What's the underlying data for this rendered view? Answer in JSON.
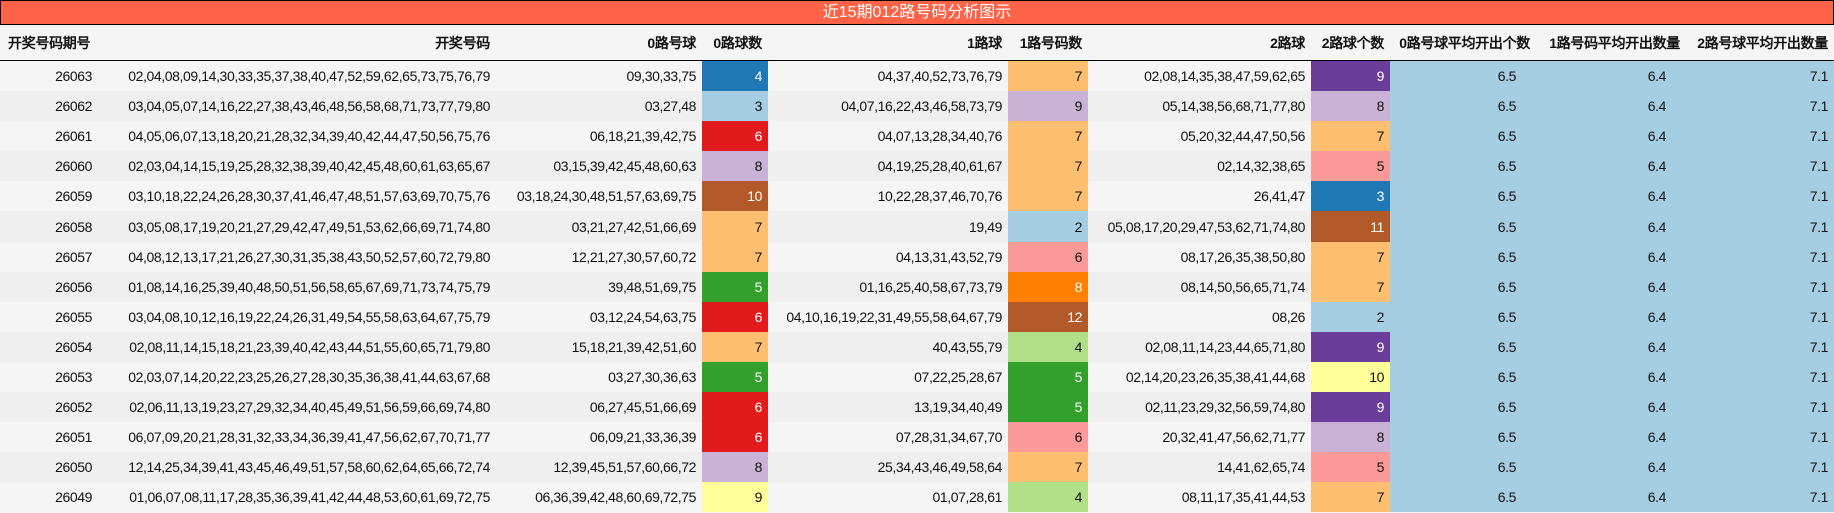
{
  "title": "近15期012路号码分析图示",
  "headers": [
    "开奖号码期号",
    "开奖号码",
    "0路号球",
    "0路球数",
    "1路球",
    "1路号码数",
    "2路球",
    "2路球个数",
    "0路号球平均开出个数",
    "1路号码平均开出数量",
    "2路号球平均开出数量"
  ],
  "avg_color": "#a6cee3",
  "rows": [
    {
      "issue": "26063",
      "numbers": "02,04,08,09,14,30,33,35,37,38,40,47,52,59,62,65,73,75,76,79",
      "r0": "09,30,33,75",
      "c0": "4",
      "c0_color": "#1f78b4",
      "r1": "04,37,40,52,73,76,79",
      "c1": "7",
      "c1_color": "#fdbf6f",
      "r2": "02,08,14,35,38,47,59,62,65",
      "c2": "9",
      "c2_color": "#6a3d9a",
      "a0": "6.5",
      "a1": "6.4",
      "a2": "7.1"
    },
    {
      "issue": "26062",
      "numbers": "03,04,05,07,14,16,22,27,38,43,46,48,56,58,68,71,73,77,79,80",
      "r0": "03,27,48",
      "c0": "3",
      "c0_color": "#a6cee3",
      "r1": "04,07,16,22,43,46,58,73,79",
      "c1": "9",
      "c1_color": "#cab2d6",
      "r2": "05,14,38,56,68,71,77,80",
      "c2": "8",
      "c2_color": "#cab2d6",
      "a0": "6.5",
      "a1": "6.4",
      "a2": "7.1"
    },
    {
      "issue": "26061",
      "numbers": "04,05,06,07,13,18,20,21,28,32,34,39,40,42,44,47,50,56,75,76",
      "r0": "06,18,21,39,42,75",
      "c0": "6",
      "c0_color": "#e31a1c",
      "r1": "04,07,13,28,34,40,76",
      "c1": "7",
      "c1_color": "#fdbf6f",
      "r2": "05,20,32,44,47,50,56",
      "c2": "7",
      "c2_color": "#fdbf6f",
      "a0": "6.5",
      "a1": "6.4",
      "a2": "7.1"
    },
    {
      "issue": "26060",
      "numbers": "02,03,04,14,15,19,25,28,32,38,39,40,42,45,48,60,61,63,65,67",
      "r0": "03,15,39,42,45,48,60,63",
      "c0": "8",
      "c0_color": "#cab2d6",
      "r1": "04,19,25,28,40,61,67",
      "c1": "7",
      "c1_color": "#fdbf6f",
      "r2": "02,14,32,38,65",
      "c2": "5",
      "c2_color": "#fb9a99",
      "a0": "6.5",
      "a1": "6.4",
      "a2": "7.1"
    },
    {
      "issue": "26059",
      "numbers": "03,10,18,22,24,26,28,30,37,41,46,47,48,51,57,63,69,70,75,76",
      "r0": "03,18,24,30,48,51,57,63,69,75",
      "c0": "10",
      "c0_color": "#b15928",
      "r1": "10,22,28,37,46,70,76",
      "c1": "7",
      "c1_color": "#fdbf6f",
      "r2": "26,41,47",
      "c2": "3",
      "c2_color": "#1f78b4",
      "a0": "6.5",
      "a1": "6.4",
      "a2": "7.1"
    },
    {
      "issue": "26058",
      "numbers": "03,05,08,17,19,20,21,27,29,42,47,49,51,53,62,66,69,71,74,80",
      "r0": "03,21,27,42,51,66,69",
      "c0": "7",
      "c0_color": "#fdbf6f",
      "r1": "19,49",
      "c1": "2",
      "c1_color": "#a6cee3",
      "r2": "05,08,17,20,29,47,53,62,71,74,80",
      "c2": "11",
      "c2_color": "#b15928",
      "a0": "6.5",
      "a1": "6.4",
      "a2": "7.1"
    },
    {
      "issue": "26057",
      "numbers": "04,08,12,13,17,21,26,27,30,31,35,38,43,50,52,57,60,72,79,80",
      "r0": "12,21,27,30,57,60,72",
      "c0": "7",
      "c0_color": "#fdbf6f",
      "r1": "04,13,31,43,52,79",
      "c1": "6",
      "c1_color": "#fb9a99",
      "r2": "08,17,26,35,38,50,80",
      "c2": "7",
      "c2_color": "#fdbf6f",
      "a0": "6.5",
      "a1": "6.4",
      "a2": "7.1"
    },
    {
      "issue": "26056",
      "numbers": "01,08,14,16,25,39,40,48,50,51,56,58,65,67,69,71,73,74,75,79",
      "r0": "39,48,51,69,75",
      "c0": "5",
      "c0_color": "#33a02c",
      "r1": "01,16,25,40,58,67,73,79",
      "c1": "8",
      "c1_color": "#ff7f00",
      "r2": "08,14,50,56,65,71,74",
      "c2": "7",
      "c2_color": "#fdbf6f",
      "a0": "6.5",
      "a1": "6.4",
      "a2": "7.1"
    },
    {
      "issue": "26055",
      "numbers": "03,04,08,10,12,16,19,22,24,26,31,49,54,55,58,63,64,67,75,79",
      "r0": "03,12,24,54,63,75",
      "c0": "6",
      "c0_color": "#e31a1c",
      "r1": "04,10,16,19,22,31,49,55,58,64,67,79",
      "c1": "12",
      "c1_color": "#b15928",
      "r2": "08,26",
      "c2": "2",
      "c2_color": "#a6cee3",
      "a0": "6.5",
      "a1": "6.4",
      "a2": "7.1"
    },
    {
      "issue": "26054",
      "numbers": "02,08,11,14,15,18,21,23,39,40,42,43,44,51,55,60,65,71,79,80",
      "r0": "15,18,21,39,42,51,60",
      "c0": "7",
      "c0_color": "#fdbf6f",
      "r1": "40,43,55,79",
      "c1": "4",
      "c1_color": "#b2df8a",
      "r2": "02,08,11,14,23,44,65,71,80",
      "c2": "9",
      "c2_color": "#6a3d9a",
      "a0": "6.5",
      "a1": "6.4",
      "a2": "7.1"
    },
    {
      "issue": "26053",
      "numbers": "02,03,07,14,20,22,23,25,26,27,28,30,35,36,38,41,44,63,67,68",
      "r0": "03,27,30,36,63",
      "c0": "5",
      "c0_color": "#33a02c",
      "r1": "07,22,25,28,67",
      "c1": "5",
      "c1_color": "#33a02c",
      "r2": "02,14,20,23,26,35,38,41,44,68",
      "c2": "10",
      "c2_color": "#ffff99",
      "a0": "6.5",
      "a1": "6.4",
      "a2": "7.1"
    },
    {
      "issue": "26052",
      "numbers": "02,06,11,13,19,23,27,29,32,34,40,45,49,51,56,59,66,69,74,80",
      "r0": "06,27,45,51,66,69",
      "c0": "6",
      "c0_color": "#e31a1c",
      "r1": "13,19,34,40,49",
      "c1": "5",
      "c1_color": "#33a02c",
      "r2": "02,11,23,29,32,56,59,74,80",
      "c2": "9",
      "c2_color": "#6a3d9a",
      "a0": "6.5",
      "a1": "6.4",
      "a2": "7.1"
    },
    {
      "issue": "26051",
      "numbers": "06,07,09,20,21,28,31,32,33,34,36,39,41,47,56,62,67,70,71,77",
      "r0": "06,09,21,33,36,39",
      "c0": "6",
      "c0_color": "#e31a1c",
      "r1": "07,28,31,34,67,70",
      "c1": "6",
      "c1_color": "#fb9a99",
      "r2": "20,32,41,47,56,62,71,77",
      "c2": "8",
      "c2_color": "#cab2d6",
      "a0": "6.5",
      "a1": "6.4",
      "a2": "7.1"
    },
    {
      "issue": "26050",
      "numbers": "12,14,25,34,39,41,43,45,46,49,51,57,58,60,62,64,65,66,72,74",
      "r0": "12,39,45,51,57,60,66,72",
      "c0": "8",
      "c0_color": "#cab2d6",
      "r1": "25,34,43,46,49,58,64",
      "c1": "7",
      "c1_color": "#fdbf6f",
      "r2": "14,41,62,65,74",
      "c2": "5",
      "c2_color": "#fb9a99",
      "a0": "6.5",
      "a1": "6.4",
      "a2": "7.1"
    },
    {
      "issue": "26049",
      "numbers": "01,06,07,08,11,17,28,35,36,39,41,42,44,48,53,60,61,69,72,75",
      "r0": "06,36,39,42,48,60,69,72,75",
      "c0": "9",
      "c0_color": "#ffff99",
      "r1": "01,07,28,61",
      "c1": "4",
      "c1_color": "#b2df8a",
      "r2": "08,11,17,35,41,44,53",
      "c2": "7",
      "c2_color": "#fdbf6f",
      "a0": "6.5",
      "a1": "6.4",
      "a2": "7.1"
    }
  ]
}
